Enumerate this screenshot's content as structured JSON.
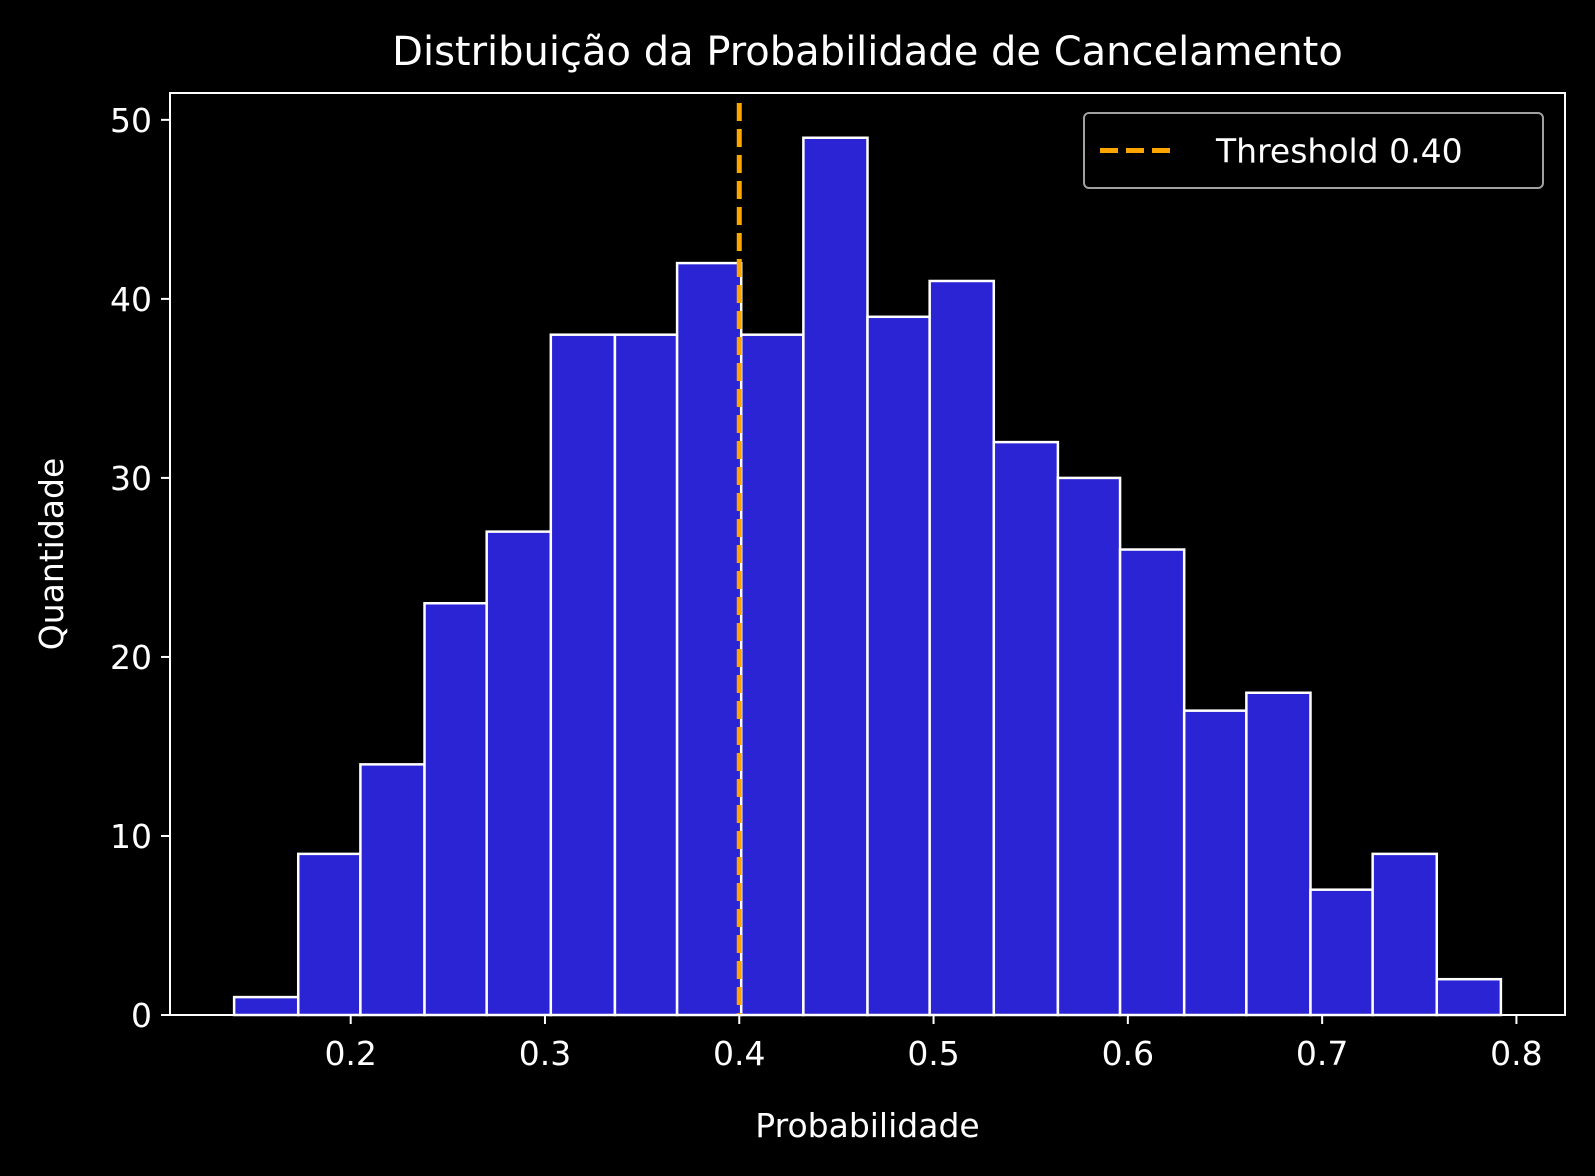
{
  "chart_data": {
    "type": "bar",
    "title": "Distribuição da Probabilidade de Cancelamento",
    "xlabel": "Probabilidade",
    "ylabel": "Quantidade",
    "bins": [
      {
        "x0": 0.14,
        "x1": 0.173,
        "count": 1
      },
      {
        "x0": 0.173,
        "x1": 0.205,
        "count": 9
      },
      {
        "x0": 0.205,
        "x1": 0.238,
        "count": 14
      },
      {
        "x0": 0.238,
        "x1": 0.27,
        "count": 23
      },
      {
        "x0": 0.27,
        "x1": 0.303,
        "count": 27
      },
      {
        "x0": 0.303,
        "x1": 0.336,
        "count": 38
      },
      {
        "x0": 0.336,
        "x1": 0.368,
        "count": 38
      },
      {
        "x0": 0.368,
        "x1": 0.401,
        "count": 42
      },
      {
        "x0": 0.401,
        "x1": 0.433,
        "count": 38
      },
      {
        "x0": 0.433,
        "x1": 0.466,
        "count": 49
      },
      {
        "x0": 0.466,
        "x1": 0.498,
        "count": 39
      },
      {
        "x0": 0.498,
        "x1": 0.531,
        "count": 41
      },
      {
        "x0": 0.531,
        "x1": 0.564,
        "count": 32
      },
      {
        "x0": 0.564,
        "x1": 0.596,
        "count": 30
      },
      {
        "x0": 0.596,
        "x1": 0.629,
        "count": 26
      },
      {
        "x0": 0.629,
        "x1": 0.661,
        "count": 17
      },
      {
        "x0": 0.661,
        "x1": 0.694,
        "count": 18
      },
      {
        "x0": 0.694,
        "x1": 0.726,
        "count": 7
      },
      {
        "x0": 0.726,
        "x1": 0.759,
        "count": 9
      },
      {
        "x0": 0.759,
        "x1": 0.792,
        "count": 2
      }
    ],
    "xlim": [
      0.107,
      0.825
    ],
    "ylim": [
      0,
      51.5
    ],
    "xticks": [
      0.2,
      0.3,
      0.4,
      0.5,
      0.6,
      0.7,
      0.8
    ],
    "xtick_labels": [
      "0.2",
      "0.3",
      "0.4",
      "0.5",
      "0.6",
      "0.7",
      "0.8"
    ],
    "yticks": [
      0,
      10,
      20,
      30,
      40,
      50
    ],
    "ytick_labels": [
      "0",
      "10",
      "20",
      "30",
      "40",
      "50"
    ],
    "threshold": {
      "value": 0.4,
      "label": "Threshold 0.40",
      "style": "dashed"
    },
    "legend_placement": "top-right",
    "grid": false,
    "colors": {
      "background": "#000000",
      "bar_fill": "#2b24d4",
      "bar_edge": "#ffffff",
      "threshold": "#ffa500",
      "axes": "#ffffff",
      "legend_border": "#a0a0a0"
    }
  }
}
